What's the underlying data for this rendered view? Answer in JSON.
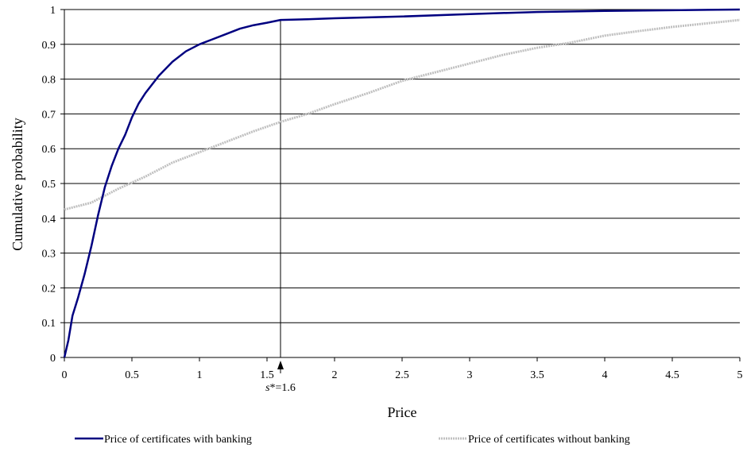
{
  "chart_data": {
    "type": "line",
    "xlabel": "Price",
    "ylabel": "Cumulative probability",
    "xlim": [
      0,
      5
    ],
    "ylim": [
      0,
      1
    ],
    "x_ticks": [
      "0",
      "0.5",
      "1",
      "1.5",
      "2",
      "2.5",
      "3",
      "3.5",
      "4",
      "4.5",
      "5"
    ],
    "y_ticks": [
      "0",
      "0.1",
      "0.2",
      "0.3",
      "0.4",
      "0.5",
      "0.6",
      "0.7",
      "0.8",
      "0.9",
      "1"
    ],
    "grid": "horizontal",
    "legend_position": "bottom",
    "annotation": {
      "x": 1.6,
      "prefix": "s",
      "label": "*=1.6"
    },
    "series": [
      {
        "name": "Price of certificates with banking",
        "color": "#000080",
        "style": "solid",
        "points": [
          [
            0,
            0
          ],
          [
            0.03,
            0.05
          ],
          [
            0.06,
            0.12
          ],
          [
            0.1,
            0.17
          ],
          [
            0.15,
            0.24
          ],
          [
            0.2,
            0.32
          ],
          [
            0.25,
            0.41
          ],
          [
            0.3,
            0.49
          ],
          [
            0.35,
            0.55
          ],
          [
            0.4,
            0.6
          ],
          [
            0.45,
            0.64
          ],
          [
            0.5,
            0.69
          ],
          [
            0.55,
            0.73
          ],
          [
            0.6,
            0.76
          ],
          [
            0.7,
            0.81
          ],
          [
            0.8,
            0.85
          ],
          [
            0.9,
            0.88
          ],
          [
            1.0,
            0.9
          ],
          [
            1.1,
            0.915
          ],
          [
            1.2,
            0.93
          ],
          [
            1.3,
            0.945
          ],
          [
            1.4,
            0.955
          ],
          [
            1.5,
            0.962
          ],
          [
            1.6,
            0.97
          ],
          [
            1.8,
            0.972
          ],
          [
            2.0,
            0.975
          ],
          [
            2.5,
            0.98
          ],
          [
            3.0,
            0.987
          ],
          [
            3.5,
            0.993
          ],
          [
            4.0,
            0.996
          ],
          [
            4.5,
            0.998
          ],
          [
            5.0,
            1.0
          ]
        ]
      },
      {
        "name": "Price of certificates without banking",
        "color": "#c0c0c0",
        "style": "dotted",
        "points": [
          [
            0,
            0.425
          ],
          [
            0.2,
            0.445
          ],
          [
            0.4,
            0.485
          ],
          [
            0.6,
            0.52
          ],
          [
            0.8,
            0.56
          ],
          [
            1.0,
            0.59
          ],
          [
            1.2,
            0.62
          ],
          [
            1.4,
            0.65
          ],
          [
            1.6,
            0.677
          ],
          [
            1.8,
            0.7
          ],
          [
            2.0,
            0.728
          ],
          [
            2.25,
            0.76
          ],
          [
            2.5,
            0.795
          ],
          [
            2.75,
            0.82
          ],
          [
            3.0,
            0.845
          ],
          [
            3.25,
            0.87
          ],
          [
            3.5,
            0.89
          ],
          [
            3.75,
            0.905
          ],
          [
            4.0,
            0.925
          ],
          [
            4.25,
            0.938
          ],
          [
            4.5,
            0.95
          ],
          [
            4.75,
            0.96
          ],
          [
            5.0,
            0.97
          ]
        ]
      }
    ]
  }
}
